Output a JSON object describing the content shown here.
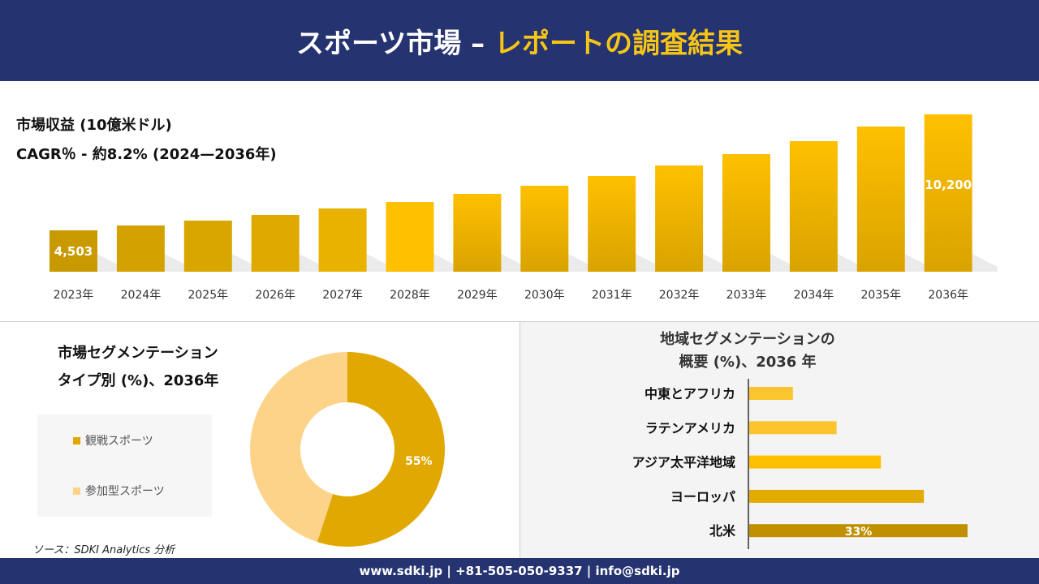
{
  "header": {
    "title_main": "スポーツ市場 –",
    "title_accent": "レポートの調査結果"
  },
  "revenue": {
    "label": "市場収益 (10億米ドル)",
    "cagr": "CAGR％ - 約8.2% (2024—2036年)"
  },
  "chart_data": [
    {
      "type": "bar",
      "categories": [
        "2023年",
        "2024年",
        "2025年",
        "2026年",
        "2027年",
        "2028年",
        "2029年",
        "2030年",
        "2031年",
        "2032年",
        "2033年",
        "2034年",
        "2035年",
        "2036年"
      ],
      "values": [
        4503,
        4742,
        4981,
        5260,
        5579,
        5897,
        6296,
        6694,
        7172,
        7690,
        8248,
        8885,
        9603,
        10200
      ],
      "data_labels": {
        "0": "4,503",
        "13": "10,200"
      },
      "title": "市場収益 (10億米ドル)",
      "grid": false
    },
    {
      "type": "pie",
      "title": "市場セグメンテーション タイプ別 (%)、2036年",
      "categories": [
        "観戦スポーツ",
        "参加型スポーツ"
      ],
      "values": [
        55,
        45
      ],
      "data_labels": {
        "0": "55%"
      },
      "colors": [
        "#e0a800",
        "#fdd389"
      ],
      "legend": "left"
    },
    {
      "type": "bar",
      "orientation": "horizontal",
      "title": "地域セグメンテーションの概要 (%)、2036 年",
      "categories": [
        "中東とアフリカ",
        "ラテンアメリカ",
        "アジア太平洋地域",
        "ヨーロッパ",
        "北米"
      ],
      "values": [
        6.6,
        13.2,
        19.9,
        26.4,
        33
      ],
      "data_labels": {
        "4": "33%"
      },
      "colors": [
        "#fcc52e",
        "#fcc52e",
        "#ffc000",
        "#e3ab00",
        "#c09000"
      ]
    }
  ],
  "segment": {
    "title_line1": "市場セグメンテーション",
    "title_line2": "タイプ別 (%)、2036年",
    "legend": [
      "観戦スポーツ",
      "参加型スポーツ"
    ]
  },
  "region": {
    "title_line1": "地域セグメンテーションの",
    "title_line2": "概要 (%)、2036 年"
  },
  "source": "ソース：SDKI Analytics 分析",
  "footer": "www.sdki.jp | +81-505-050-9337 | info@sdki.jp"
}
